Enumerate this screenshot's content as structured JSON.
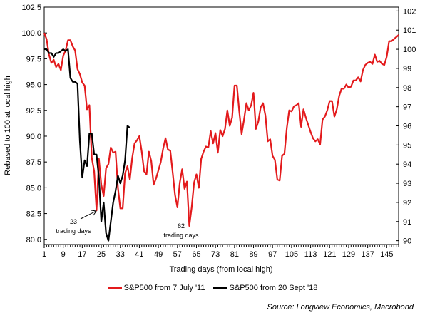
{
  "chart_data": {
    "type": "line",
    "xlabel": "Trading days (from local high)",
    "ylabel": "Rebased to 100 at local high",
    "xlim": [
      1,
      150
    ],
    "ylim": [
      79.5,
      102.5
    ],
    "ylim_right": [
      89.8,
      102.2
    ],
    "x_ticks": [
      "1",
      "9",
      "17",
      "25",
      "33",
      "41",
      "49",
      "57",
      "65",
      "73",
      "81",
      "89",
      "97",
      "105",
      "113",
      "121",
      "129",
      "137",
      "145"
    ],
    "y_ticks": [
      "80.0",
      "82.5",
      "85.0",
      "87.5",
      "90.0",
      "92.5",
      "95.0",
      "97.5",
      "100.0",
      "102.5"
    ],
    "y_right_ticks": [
      "90",
      "91",
      "92",
      "93",
      "94",
      "95",
      "96",
      "97",
      "98",
      "99",
      "100",
      "101",
      "102"
    ],
    "series": [
      {
        "name": "S&P500 from 7 July '11",
        "color": "#e31a1c",
        "axis": "left",
        "points": [
          [
            1,
            100
          ],
          [
            2,
            99.4
          ],
          [
            3,
            97.9
          ],
          [
            4,
            97.1
          ],
          [
            5,
            97.4
          ],
          [
            6,
            96.7
          ],
          [
            7,
            97.0
          ],
          [
            8,
            96.4
          ],
          [
            9,
            97.8
          ],
          [
            10,
            98.3
          ],
          [
            11,
            99.3
          ],
          [
            12,
            99.3
          ],
          [
            13,
            98.7
          ],
          [
            14,
            98.3
          ],
          [
            15,
            96.5
          ],
          [
            16,
            96.0
          ],
          [
            17,
            95.2
          ],
          [
            18,
            94.9
          ],
          [
            19,
            92.6
          ],
          [
            20,
            93.0
          ],
          [
            21,
            87.9
          ],
          [
            22,
            86.6
          ],
          [
            23,
            82.8
          ],
          [
            24,
            87.8
          ],
          [
            25,
            85.3
          ],
          [
            26,
            84.2
          ],
          [
            27,
            86.9
          ],
          [
            28,
            87.3
          ],
          [
            29,
            88.9
          ],
          [
            30,
            88.4
          ],
          [
            31,
            88.5
          ],
          [
            32,
            85.0
          ],
          [
            33,
            83.0
          ],
          [
            34,
            83.0
          ],
          [
            35,
            86.4
          ],
          [
            36,
            87.1
          ],
          [
            37,
            85.8
          ],
          [
            38,
            87.9
          ],
          [
            39,
            89.3
          ],
          [
            40,
            89.6
          ],
          [
            41,
            90.0
          ],
          [
            42,
            88.5
          ],
          [
            43,
            86.6
          ],
          [
            44,
            86.3
          ],
          [
            45,
            88.5
          ],
          [
            46,
            87.6
          ],
          [
            47,
            85.3
          ],
          [
            48,
            85.9
          ],
          [
            49,
            86.7
          ],
          [
            50,
            87.5
          ],
          [
            51,
            88.8
          ],
          [
            52,
            89.8
          ],
          [
            53,
            88.7
          ],
          [
            54,
            88.6
          ],
          [
            55,
            86.5
          ],
          [
            56,
            84.3
          ],
          [
            57,
            83.1
          ],
          [
            58,
            85.5
          ],
          [
            59,
            86.8
          ],
          [
            60,
            84.9
          ],
          [
            61,
            85.6
          ],
          [
            62,
            81.3
          ],
          [
            63,
            83.1
          ],
          [
            64,
            85.5
          ],
          [
            65,
            86.3
          ],
          [
            66,
            85.0
          ],
          [
            67,
            87.8
          ],
          [
            68,
            88.5
          ],
          [
            69,
            89.0
          ],
          [
            70,
            88.9
          ],
          [
            71,
            90.5
          ],
          [
            72,
            89.3
          ],
          [
            73,
            90.3
          ],
          [
            74,
            88.4
          ],
          [
            75,
            90.6
          ],
          [
            76,
            90.0
          ],
          [
            77,
            90.7
          ],
          [
            78,
            92.5
          ],
          [
            79,
            91.0
          ],
          [
            80,
            91.8
          ],
          [
            81,
            94.9
          ],
          [
            82,
            94.9
          ],
          [
            83,
            92.4
          ],
          [
            84,
            90.2
          ],
          [
            85,
            91.6
          ],
          [
            86,
            93.2
          ],
          [
            87,
            92.5
          ],
          [
            88,
            93.0
          ],
          [
            89,
            94.2
          ],
          [
            90,
            90.7
          ],
          [
            91,
            91.4
          ],
          [
            92,
            92.8
          ],
          [
            93,
            93.2
          ],
          [
            94,
            92.0
          ],
          [
            95,
            89.5
          ],
          [
            96,
            89.7
          ],
          [
            97,
            88.1
          ],
          [
            98,
            87.7
          ],
          [
            99,
            85.8
          ],
          [
            100,
            85.7
          ],
          [
            101,
            88.1
          ],
          [
            102,
            88.3
          ],
          [
            103,
            90.8
          ],
          [
            104,
            92.5
          ],
          [
            105,
            92.4
          ],
          [
            106,
            92.9
          ],
          [
            107,
            93.0
          ],
          [
            108,
            93.2
          ],
          [
            109,
            90.9
          ],
          [
            110,
            92.6
          ],
          [
            111,
            91.8
          ],
          [
            112,
            91.1
          ],
          [
            113,
            90.4
          ],
          [
            114,
            89.8
          ],
          [
            115,
            89.5
          ],
          [
            116,
            89.7
          ],
          [
            117,
            89.2
          ],
          [
            118,
            91.6
          ],
          [
            119,
            91.9
          ],
          [
            120,
            92.5
          ],
          [
            121,
            93.4
          ],
          [
            122,
            93.4
          ],
          [
            123,
            91.9
          ],
          [
            124,
            92.6
          ],
          [
            125,
            93.9
          ],
          [
            126,
            94.6
          ],
          [
            127,
            94.6
          ],
          [
            128,
            95.0
          ],
          [
            129,
            94.7
          ],
          [
            130,
            94.8
          ],
          [
            131,
            95.4
          ],
          [
            132,
            95.4
          ],
          [
            133,
            95.7
          ],
          [
            134,
            95.3
          ],
          [
            135,
            96.4
          ],
          [
            136,
            96.9
          ],
          [
            137,
            97.1
          ],
          [
            138,
            97.2
          ],
          [
            139,
            97.0
          ],
          [
            140,
            97.9
          ],
          [
            141,
            97.2
          ],
          [
            142,
            97.3
          ],
          [
            143,
            97.0
          ],
          [
            144,
            96.9
          ],
          [
            145,
            97.7
          ],
          [
            146,
            99.2
          ],
          [
            147,
            99.2
          ],
          [
            148,
            99.4
          ],
          [
            149,
            99.6
          ],
          [
            150,
            99.8
          ]
        ]
      },
      {
        "name": "S&P500 from 20 Sept '18",
        "color": "#000000",
        "axis": "right",
        "points": [
          [
            1,
            100.0
          ],
          [
            2,
            100.0
          ],
          [
            3,
            99.8
          ],
          [
            4,
            99.8
          ],
          [
            5,
            99.6
          ],
          [
            6,
            99.8
          ],
          [
            7,
            99.8
          ],
          [
            8,
            99.9
          ],
          [
            9,
            100.0
          ],
          [
            10,
            99.9
          ],
          [
            11,
            100.0
          ],
          [
            12,
            98.5
          ],
          [
            13,
            98.3
          ],
          [
            14,
            98.3
          ],
          [
            15,
            98.2
          ],
          [
            16,
            95.2
          ],
          [
            17,
            93.3
          ],
          [
            18,
            94.2
          ],
          [
            19,
            93.9
          ],
          [
            20,
            95.6
          ],
          [
            21,
            95.6
          ],
          [
            22,
            94.5
          ],
          [
            23,
            94.5
          ],
          [
            24,
            93.3
          ],
          [
            25,
            91.0
          ],
          [
            26,
            92.0
          ],
          [
            27,
            90.4
          ],
          [
            28,
            90.0
          ],
          [
            29,
            91.0
          ],
          [
            30,
            92.0
          ],
          [
            31,
            92.6
          ],
          [
            32,
            93.4
          ],
          [
            33,
            93.0
          ],
          [
            34,
            93.4
          ],
          [
            35,
            94.2
          ],
          [
            36,
            96.0
          ],
          [
            37,
            95.9
          ]
        ]
      }
    ],
    "annotations": [
      {
        "lines": [
          "23",
          "trading days"
        ],
        "x": 23
      },
      {
        "lines": [
          "62",
          "trading days"
        ],
        "x": 62
      }
    ],
    "legend_position": "bottom-center",
    "grid": false
  },
  "source": "Source: Longview Economics, Macrobond"
}
